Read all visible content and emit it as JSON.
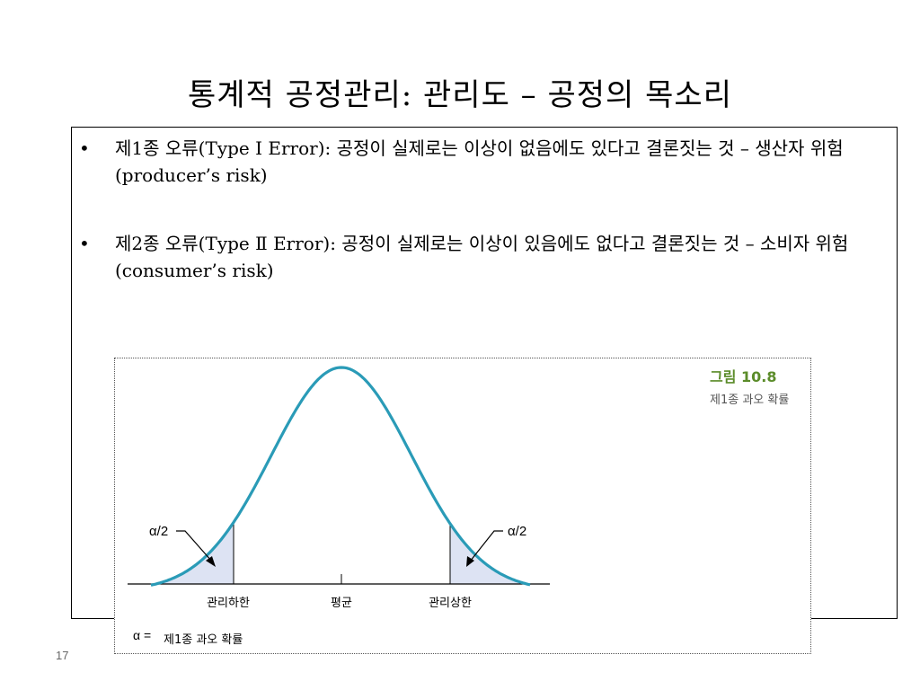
{
  "slide": {
    "title": "통계적 공정관리: 관리도 – 공정의 목소리",
    "page_number": "17"
  },
  "bullets": [
    {
      "symbol": "•",
      "text": "제1종 오류(Type Ⅰ Error): 공정이 실제로는 이상이 없음에도 있다고 결론짓는 것 – 생산자 위험(producer’s risk)"
    },
    {
      "symbol": "•",
      "text": "제2종 오류(Type Ⅱ Error): 공정이 실제로는 이상이 있음에도 없다고 결론짓는 것 – 소비자 위험(consumer’s risk)"
    }
  ],
  "figure": {
    "number_label": "그림 10.8",
    "caption": "제1종 과오 확률",
    "left_tail_label": "α/2",
    "right_tail_label": "α/2",
    "axis_labels": {
      "lcl": "관리하한",
      "mean": "평균",
      "ucl": "관리상한"
    },
    "legend_prefix": "α =",
    "legend_text": "제1종 과오 확률",
    "colors": {
      "curve": "#2a9bb7",
      "tail_fill": "#dde3f3",
      "number_label": "#5b8c2a",
      "caption": "#555555"
    }
  }
}
